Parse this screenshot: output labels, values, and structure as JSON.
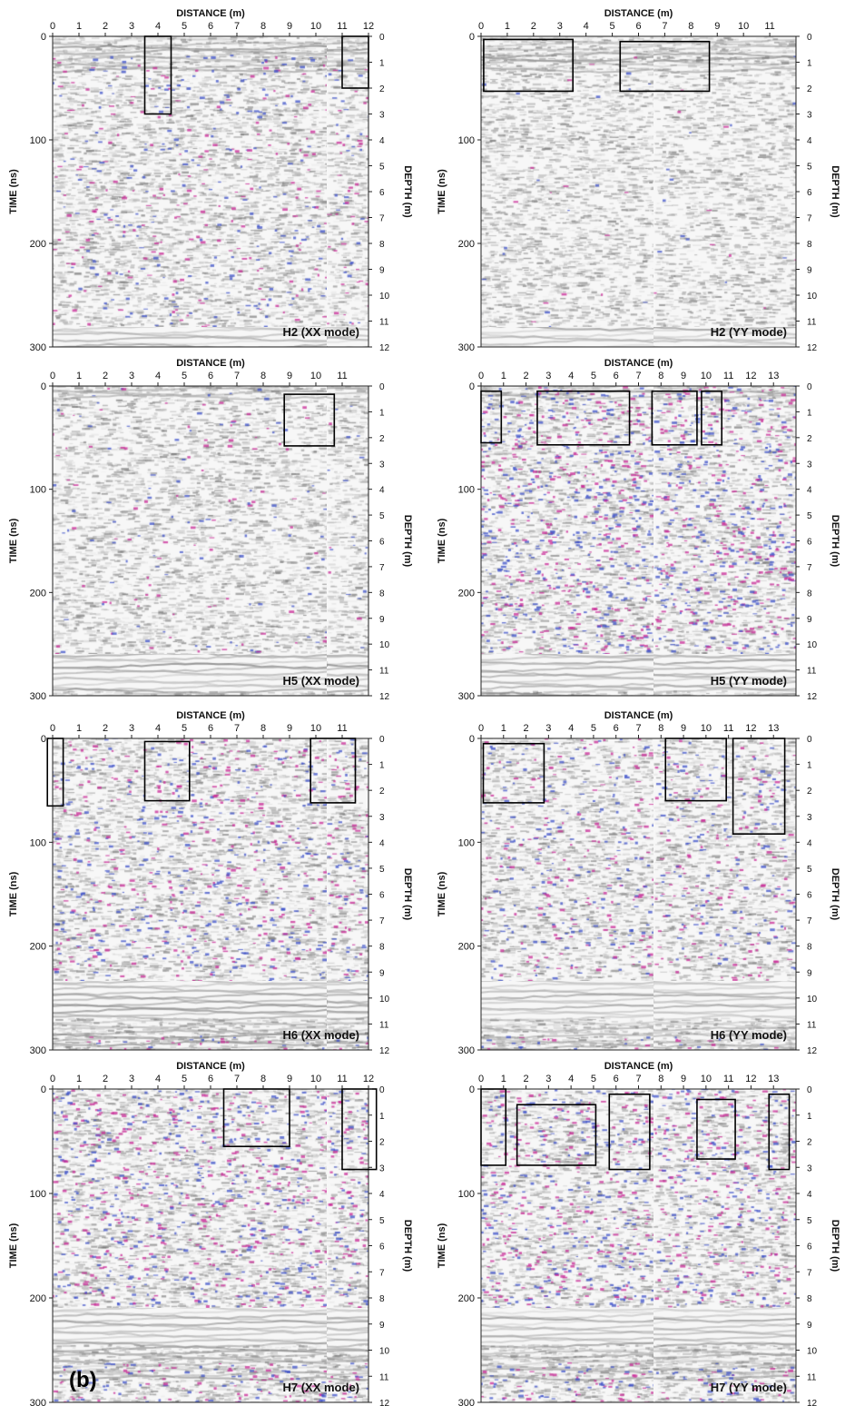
{
  "figure_label": "(b)",
  "chart_data": [
    {
      "type": "heatmap",
      "title": "H2 (XX mode)",
      "xlabel": "DISTANCE (m)",
      "ylabel": "TIME (ns)",
      "y2label": "DEPTH (m)",
      "xlim": [
        0,
        12
      ],
      "ylim": [
        0,
        300
      ],
      "y2lim": [
        0,
        12
      ],
      "xticks": [
        0,
        1,
        2,
        3,
        4,
        5,
        6,
        7,
        8,
        9,
        10,
        11,
        12
      ],
      "yticks": [
        0,
        100,
        200,
        300
      ],
      "y2ticks": [
        0,
        1,
        2,
        3,
        4,
        5,
        6,
        7,
        8,
        9,
        10,
        11,
        12
      ],
      "color_level": 0.2,
      "anomaly_boxes": [
        {
          "x0": 3.5,
          "x1": 4.5,
          "t0": 0,
          "t1": 75
        },
        {
          "x0": 11.0,
          "x1": 12.0,
          "t0": 0,
          "t1": 50
        }
      ]
    },
    {
      "type": "heatmap",
      "title": "H2 (YY mode)",
      "xlabel": "DISTANCE (m)",
      "ylabel": "TIME (ns)",
      "y2label": "DEPTH (m)",
      "xlim": [
        0,
        12
      ],
      "ylim": [
        0,
        300
      ],
      "y2lim": [
        0,
        12
      ],
      "xticks": [
        0,
        1,
        2,
        3,
        4,
        5,
        6,
        7,
        8,
        9,
        10,
        11
      ],
      "yticks": [
        0,
        100,
        200,
        300
      ],
      "y2ticks": [
        0,
        1,
        2,
        3,
        4,
        5,
        6,
        7,
        8,
        9,
        10,
        11,
        12
      ],
      "color_level": 0.02,
      "anomaly_boxes": [
        {
          "x0": 0.1,
          "x1": 3.5,
          "t0": 3,
          "t1": 53
        },
        {
          "x0": 5.3,
          "x1": 8.7,
          "t0": 5,
          "t1": 53
        }
      ]
    },
    {
      "type": "heatmap",
      "title": "H5 (XX mode)",
      "xlabel": "DISTANCE (m)",
      "ylabel": "TIME (ns)",
      "y2label": "DEPTH (m)",
      "xlim": [
        0,
        12
      ],
      "ylim": [
        0,
        300
      ],
      "y2lim": [
        0,
        12
      ],
      "xticks": [
        0,
        1,
        2,
        3,
        4,
        5,
        6,
        7,
        8,
        9,
        10,
        11
      ],
      "yticks": [
        0,
        100,
        200,
        300
      ],
      "y2ticks": [
        0,
        1,
        2,
        3,
        4,
        5,
        6,
        7,
        8,
        9,
        10,
        11,
        12
      ],
      "color_level": 0.08,
      "anomaly_boxes": [
        {
          "x0": 8.8,
          "x1": 10.7,
          "t0": 8,
          "t1": 58
        }
      ]
    },
    {
      "type": "heatmap",
      "title": "H5 (YY mode)",
      "xlabel": "DISTANCE (m)",
      "ylabel": "TIME (ns)",
      "y2label": "DEPTH (m)",
      "xlim": [
        0,
        14
      ],
      "ylim": [
        0,
        300
      ],
      "y2lim": [
        0,
        12
      ],
      "xticks": [
        0,
        1,
        2,
        3,
        4,
        5,
        6,
        7,
        8,
        9,
        10,
        11,
        12,
        13
      ],
      "yticks": [
        0,
        100,
        200,
        300
      ],
      "y2ticks": [
        0,
        1,
        2,
        3,
        4,
        5,
        6,
        7,
        8,
        9,
        10,
        11,
        12
      ],
      "color_level": 0.55,
      "anomaly_boxes": [
        {
          "x0": 0.0,
          "x1": 0.9,
          "t0": 5,
          "t1": 55
        },
        {
          "x0": 2.5,
          "x1": 6.6,
          "t0": 5,
          "t1": 57
        },
        {
          "x0": 7.6,
          "x1": 9.6,
          "t0": 5,
          "t1": 57
        },
        {
          "x0": 9.8,
          "x1": 10.7,
          "t0": 5,
          "t1": 57
        }
      ]
    },
    {
      "type": "heatmap",
      "title": "H6 (XX mode)",
      "xlabel": "DISTANCE (m)",
      "ylabel": "TIME (ns)",
      "y2label": "DEPTH (m)",
      "xlim": [
        0,
        12
      ],
      "ylim": [
        0,
        300
      ],
      "y2lim": [
        0,
        12
      ],
      "xticks": [
        0,
        1,
        2,
        3,
        4,
        5,
        6,
        7,
        8,
        9,
        10,
        11
      ],
      "yticks": [
        0,
        100,
        200,
        300
      ],
      "y2ticks": [
        0,
        1,
        2,
        3,
        4,
        5,
        6,
        7,
        8,
        9,
        10,
        11,
        12
      ],
      "color_level": 0.35,
      "anomaly_boxes": [
        {
          "x0": -0.2,
          "x1": 0.4,
          "t0": 0,
          "t1": 65
        },
        {
          "x0": 3.5,
          "x1": 5.2,
          "t0": 3,
          "t1": 60
        },
        {
          "x0": 9.8,
          "x1": 11.5,
          "t0": 0,
          "t1": 62
        }
      ]
    },
    {
      "type": "heatmap",
      "title": "H6 (YY mode)",
      "xlabel": "DISTANCE (m)",
      "ylabel": "TIME (ns)",
      "y2label": "DEPTH (m)",
      "xlim": [
        0,
        14
      ],
      "ylim": [
        0,
        300
      ],
      "y2lim": [
        0,
        12
      ],
      "xticks": [
        0,
        1,
        2,
        3,
        4,
        5,
        6,
        7,
        8,
        9,
        10,
        11,
        12,
        13
      ],
      "yticks": [
        0,
        100,
        200,
        300
      ],
      "y2ticks": [
        0,
        1,
        2,
        3,
        4,
        5,
        6,
        7,
        8,
        9,
        10,
        11,
        12
      ],
      "color_level": 0.3,
      "anomaly_boxes": [
        {
          "x0": 0.1,
          "x1": 2.8,
          "t0": 5,
          "t1": 62
        },
        {
          "x0": 8.2,
          "x1": 10.9,
          "t0": 0,
          "t1": 60
        },
        {
          "x0": 11.2,
          "x1": 13.5,
          "t0": 0,
          "t1": 92
        }
      ]
    },
    {
      "type": "heatmap",
      "title": "H7 (XX mode)",
      "xlabel": "DISTANCE (m)",
      "ylabel": "TIME (ns)",
      "y2label": "DEPTH (m)",
      "xlim": [
        0,
        12
      ],
      "ylim": [
        0,
        300
      ],
      "y2lim": [
        0,
        12
      ],
      "xticks": [
        0,
        1,
        2,
        3,
        4,
        5,
        6,
        7,
        8,
        9,
        10,
        11,
        12
      ],
      "yticks": [
        0,
        100,
        200,
        300
      ],
      "y2ticks": [
        0,
        1,
        2,
        3,
        4,
        5,
        6,
        7,
        8,
        9,
        10,
        11,
        12
      ],
      "color_level": 0.45,
      "anomaly_boxes": [
        {
          "x0": 6.5,
          "x1": 9.0,
          "t0": 0,
          "t1": 55
        },
        {
          "x0": 11.0,
          "x1": 12.3,
          "t0": 0,
          "t1": 77
        }
      ]
    },
    {
      "type": "heatmap",
      "title": "H7 (YY mode)",
      "xlabel": "DISTANCE (m)",
      "ylabel": "TIME (ns)",
      "y2label": "DEPTH (m)",
      "xlim": [
        0,
        14
      ],
      "ylim": [
        0,
        300
      ],
      "y2lim": [
        0,
        12
      ],
      "xticks": [
        0,
        1,
        2,
        3,
        4,
        5,
        6,
        7,
        8,
        9,
        10,
        11,
        12,
        13
      ],
      "yticks": [
        0,
        100,
        200,
        300
      ],
      "y2ticks": [
        0,
        1,
        2,
        3,
        4,
        5,
        6,
        7,
        8,
        9,
        10,
        11,
        12
      ],
      "color_level": 0.45,
      "anomaly_boxes": [
        {
          "x0": 0.0,
          "x1": 1.1,
          "t0": 0,
          "t1": 73
        },
        {
          "x0": 1.6,
          "x1": 5.1,
          "t0": 15,
          "t1": 73
        },
        {
          "x0": 5.7,
          "x1": 7.5,
          "t0": 5,
          "t1": 77
        },
        {
          "x0": 9.6,
          "x1": 11.3,
          "t0": 10,
          "t1": 67
        },
        {
          "x0": 12.8,
          "x1": 13.7,
          "t0": 5,
          "t1": 77
        }
      ]
    }
  ]
}
